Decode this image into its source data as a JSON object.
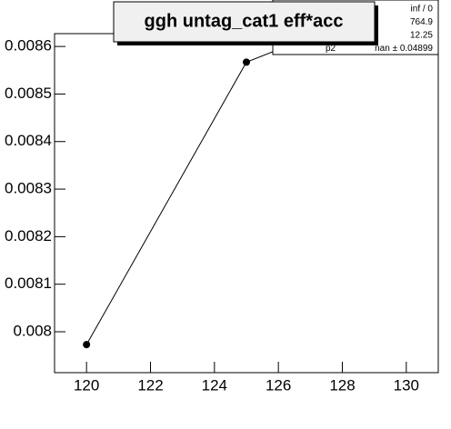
{
  "chart_data": {
    "type": "line",
    "title": "ggh untag_cat1 eff*acc",
    "x": [
      120,
      125,
      130
    ],
    "values": [
      0.007973,
      0.008567,
      0.0087
    ],
    "color": "#000000",
    "xlim": [
      119,
      131
    ],
    "xticks": [
      120,
      122,
      124,
      126,
      128,
      130
    ],
    "ylim": [
      0.007914,
      0.008627
    ],
    "yticks": [
      0.008,
      0.0081,
      0.0082,
      0.0083,
      0.0084,
      0.0085,
      0.0086
    ],
    "grid": false,
    "stats": [
      {
        "value": "inf / 0"
      },
      {
        "value": "764.9"
      },
      {
        "value": "12.25"
      },
      {
        "name": "p2",
        "value": "nan ± 0.04899"
      }
    ]
  }
}
